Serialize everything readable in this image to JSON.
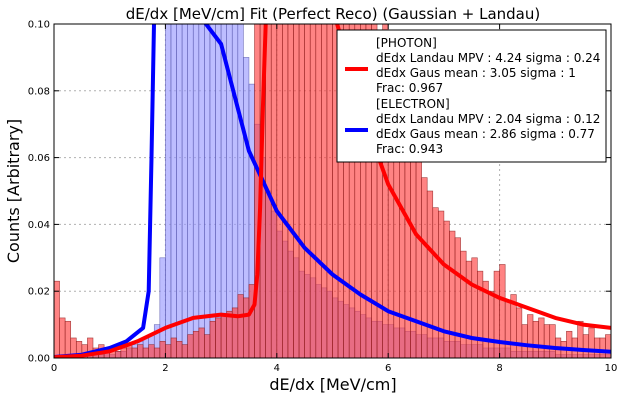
{
  "chart_data": {
    "type": "bar",
    "title": "dE/dx [MeV/cm] Fit (Perfect Reco) (Gaussian + Landau)",
    "xlabel": "dE/dx [MeV/cm]",
    "ylabel": "Counts [Arbitrary]",
    "xlim": [
      0,
      10
    ],
    "ylim": [
      0,
      0.1
    ],
    "x_ticks": [
      0,
      2,
      4,
      6,
      8,
      10
    ],
    "y_ticks": [
      0.0,
      0.02,
      0.04,
      0.06,
      0.08,
      0.1
    ],
    "x_tick_labels": [
      "0",
      "2",
      "4",
      "6",
      "8",
      "10"
    ],
    "y_tick_labels": [
      "0.00",
      "0.02",
      "0.04",
      "0.06",
      "0.08",
      "0.10"
    ],
    "grid": true,
    "legend_position": "top-right",
    "bin_width": 0.1,
    "series": [
      {
        "label_lines": [
          "[PHOTON]",
          "dEdx Landau MPV : 4.24 sigma : 0.24",
          "dEdx Gaus mean : 3.05 sigma : 1",
          "Frac: 0.967"
        ],
        "color": "#ff0000",
        "hist_color": "#ff4040",
        "hist_edge": "#8a1a1a",
        "hist_values": [
          0.023,
          0.012,
          0.011,
          0.006,
          0.005,
          0.004,
          0.006,
          0.003,
          0.004,
          0.002,
          0.003,
          0.002,
          0.003,
          0.004,
          0.003,
          0.004,
          0.003,
          0.004,
          0.003,
          0.005,
          0.004,
          0.006,
          0.005,
          0.004,
          0.007,
          0.008,
          0.009,
          0.007,
          0.011,
          0.012,
          0.013,
          0.014,
          0.015,
          0.019,
          0.018,
          0.016,
          0.015,
          0.013,
          0.018,
          0.016,
          0.014,
          0.016,
          0.013,
          0.018,
          0.017,
          0.015,
          0.014,
          0.016,
          0.019,
          0.012,
          0.015,
          0.014,
          0.018,
          0.016,
          0.013,
          0.017,
          0.019,
          0.018,
          0.02,
          0.017,
          0.018,
          0.018,
          0.017,
          0.018,
          0.015,
          0.017,
          0.018,
          0.012,
          0.019,
          0.016,
          0.015,
          0.014,
          0.012,
          0.011,
          0.012,
          0.01,
          0.007,
          0.004,
          0.006,
          0.003,
          0.004,
          0.005,
          0.003,
          0.003,
          0.002,
          0.004,
          0.002,
          0.003,
          0.002,
          0.002,
          0.002,
          0.001,
          0.002,
          0.001,
          0.001,
          0.001,
          0.001,
          0.001,
          0.001,
          0.001
        ],
        "hist_values_upper": {
          "34": 0.018,
          "35": 0.022,
          "36": 0.1,
          "37": 0.1,
          "38": 0.1,
          "39": 0.1,
          "40": 0.1,
          "41": 0.1,
          "42": 0.1,
          "43": 0.1,
          "44": 0.1,
          "45": 0.1,
          "46": 0.1,
          "47": 0.1,
          "48": 0.1,
          "49": 0.1,
          "50": 0.1,
          "51": 0.1,
          "52": 0.1,
          "53": 0.1,
          "54": 0.1,
          "55": 0.1,
          "56": 0.1,
          "57": 0.1,
          "58": 0.095,
          "59": 0.1,
          "60": 0.088,
          "61": 0.08,
          "62": 0.07,
          "63": 0.066,
          "64": 0.062,
          "65": 0.06,
          "66": 0.054,
          "67": 0.05,
          "68": 0.045,
          "69": 0.044,
          "70": 0.041,
          "71": 0.038,
          "72": 0.036,
          "73": 0.032,
          "74": 0.029,
          "75": 0.03,
          "76": 0.026,
          "77": 0.023,
          "78": 0.02,
          "79": 0.026,
          "80": 0.028,
          "81": 0.017,
          "82": 0.019,
          "83": 0.015,
          "84": 0.01,
          "85": 0.013,
          "86": 0.011,
          "87": 0.012,
          "88": 0.01,
          "89": 0.01,
          "90": 0.006,
          "91": 0.005,
          "92": 0.008,
          "93": 0.006,
          "94": 0.011,
          "95": 0.007,
          "96": 0.009,
          "97": 0.006,
          "98": 0.006,
          "99": 0.007
        },
        "fit_x": [
          0,
          0.5,
          1.0,
          1.5,
          2.0,
          2.5,
          3.0,
          3.3,
          3.5,
          3.6,
          3.65,
          3.7,
          3.75,
          3.8,
          3.9,
          4.0,
          4.24,
          4.5,
          5.0,
          5.5,
          6.0,
          6.5,
          7.0,
          7.5,
          8.0,
          8.5,
          9.0,
          9.5,
          10.0
        ],
        "fit_y": [
          0.0002,
          0.0007,
          0.002,
          0.005,
          0.009,
          0.012,
          0.013,
          0.0125,
          0.013,
          0.016,
          0.025,
          0.045,
          0.075,
          0.1,
          0.13,
          0.16,
          0.17,
          0.15,
          0.11,
          0.075,
          0.052,
          0.037,
          0.028,
          0.022,
          0.018,
          0.015,
          0.012,
          0.01,
          0.009
        ]
      },
      {
        "label_lines": [
          "[ELECTRON]",
          "dEdx Landau MPV : 2.04 sigma : 0.12",
          "dEdx Gaus mean : 2.86 sigma : 0.77",
          "Frac: 0.943"
        ],
        "color": "#0000ff",
        "hist_color": "#9999ff",
        "hist_edge": "#5555aa",
        "hist_values": [
          0.0,
          0.0,
          0.0,
          0.001,
          0.0,
          0.001,
          0.001,
          0.001,
          0.001,
          0.002,
          0.001,
          0.002,
          0.002,
          0.003,
          0.004,
          0.005,
          0.006,
          0.007,
          0.01,
          0.03,
          0.1,
          0.1,
          0.1,
          0.1,
          0.1,
          0.1,
          0.1,
          0.1,
          0.1,
          0.1,
          0.1,
          0.1,
          0.1,
          0.1,
          0.09,
          0.082,
          0.07,
          0.06,
          0.05,
          0.044,
          0.038,
          0.035,
          0.032,
          0.03,
          0.026,
          0.025,
          0.024,
          0.022,
          0.021,
          0.02,
          0.018,
          0.017,
          0.016,
          0.015,
          0.014,
          0.013,
          0.012,
          0.011,
          0.011,
          0.01,
          0.01,
          0.009,
          0.009,
          0.008,
          0.008,
          0.007,
          0.007,
          0.006,
          0.006,
          0.006,
          0.005,
          0.005,
          0.005,
          0.004,
          0.004,
          0.004,
          0.004,
          0.003,
          0.003,
          0.003,
          0.003,
          0.003,
          0.002,
          0.002,
          0.002,
          0.002,
          0.002,
          0.002,
          0.002,
          0.002,
          0.001,
          0.001,
          0.001,
          0.001,
          0.001,
          0.001,
          0.001,
          0.001,
          0.001,
          0.001
        ],
        "fit_x": [
          0,
          0.5,
          1.0,
          1.3,
          1.6,
          1.7,
          1.75,
          1.8,
          1.9,
          2.0,
          2.04,
          2.2,
          2.5,
          3.0,
          3.5,
          4.0,
          4.5,
          5.0,
          5.5,
          6.0,
          6.5,
          7.0,
          7.5,
          8.0,
          8.5,
          9.0,
          9.5,
          10.0
        ],
        "fit_y": [
          0.0003,
          0.001,
          0.003,
          0.005,
          0.009,
          0.02,
          0.06,
          0.12,
          0.2,
          0.3,
          0.32,
          0.25,
          0.16,
          0.094,
          0.062,
          0.044,
          0.033,
          0.025,
          0.019,
          0.014,
          0.011,
          0.008,
          0.006,
          0.0048,
          0.0038,
          0.003,
          0.0024,
          0.0019
        ]
      }
    ]
  }
}
